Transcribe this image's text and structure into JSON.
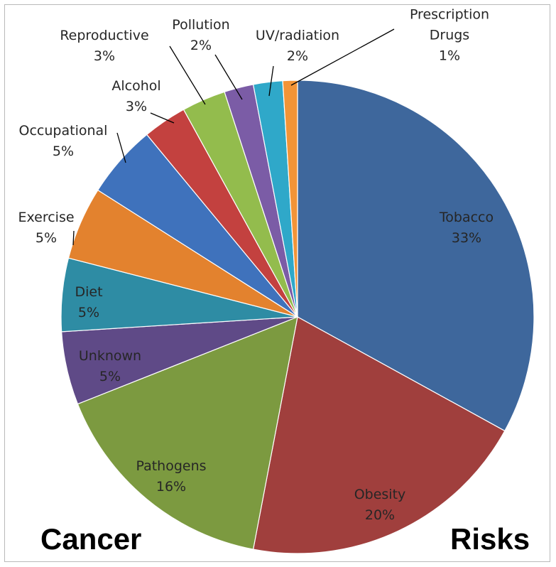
{
  "chart_data": {
    "type": "pie",
    "title_left": "Cancer",
    "title_right": "Risks",
    "slices": [
      {
        "name": "Tobacco",
        "label": "33%",
        "value": 33,
        "color": "#3E679C"
      },
      {
        "name": "Obesity",
        "label": "20%",
        "value": 20,
        "color": "#A03F3D"
      },
      {
        "name": "Pathogens",
        "label": "16%",
        "value": 16,
        "color": "#7C9A40"
      },
      {
        "name": "Unknown",
        "label": "5%",
        "value": 5,
        "color": "#5F4A87"
      },
      {
        "name": "Diet",
        "label": "5%",
        "value": 5,
        "color": "#2E8CA4"
      },
      {
        "name": "Exercise",
        "label": "5%",
        "value": 5,
        "color": "#E3822E"
      },
      {
        "name": "Occupational",
        "label": "5%",
        "value": 5,
        "color": "#3F72BC"
      },
      {
        "name": "Alcohol",
        "label": "3%",
        "value": 3,
        "color": "#C3413F"
      },
      {
        "name": "Reproductive",
        "label": "3%",
        "value": 3,
        "color": "#93BC4D"
      },
      {
        "name": "Pollution",
        "label": "2%",
        "value": 2,
        "color": "#7B5CA6"
      },
      {
        "name": "UV/radiation",
        "label": "2%",
        "value": 2,
        "color": "#2FA8C9"
      },
      {
        "name": "Prescription Drugs",
        "label": "1%",
        "value": 1,
        "color": "#F29437"
      }
    ]
  }
}
